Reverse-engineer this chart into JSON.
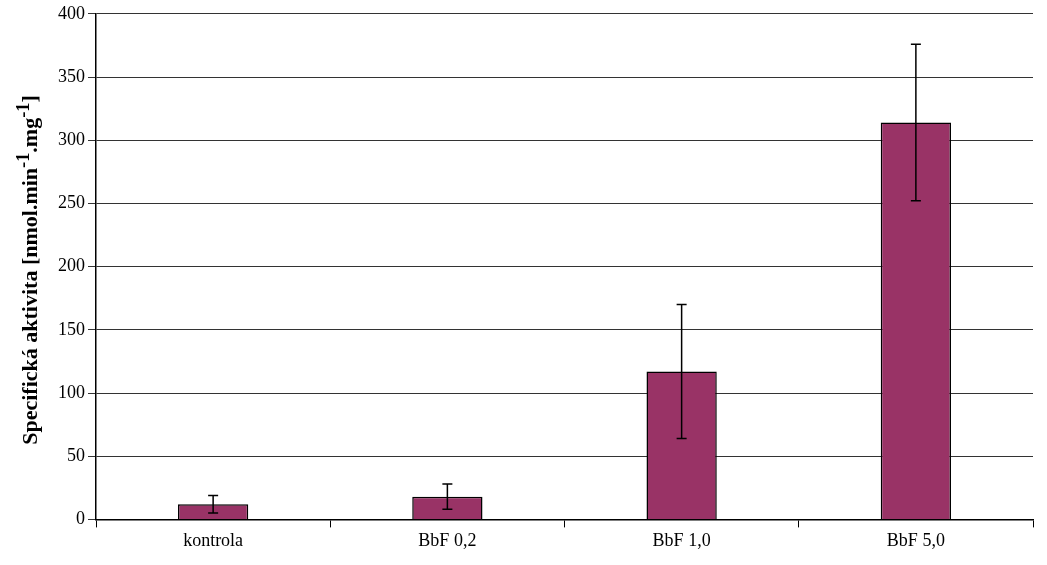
{
  "chart_data": {
    "type": "bar",
    "ylabel": "Specifická aktivita [nmol.min$^{-1}$.mg$^{-1}$]",
    "categories": [
      "kontrola",
      "BbF 0,2",
      "BbF 1,0",
      "BbF 5,0"
    ],
    "values": [
      12,
      18,
      117,
      314
    ],
    "errors": [
      7,
      10,
      53,
      62
    ],
    "color": "#993366",
    "ylim": [
      0,
      400
    ],
    "yticks": [
      0,
      50,
      100,
      150,
      200,
      250,
      300,
      350,
      400
    ],
    "grid": "y",
    "legend": false
  }
}
